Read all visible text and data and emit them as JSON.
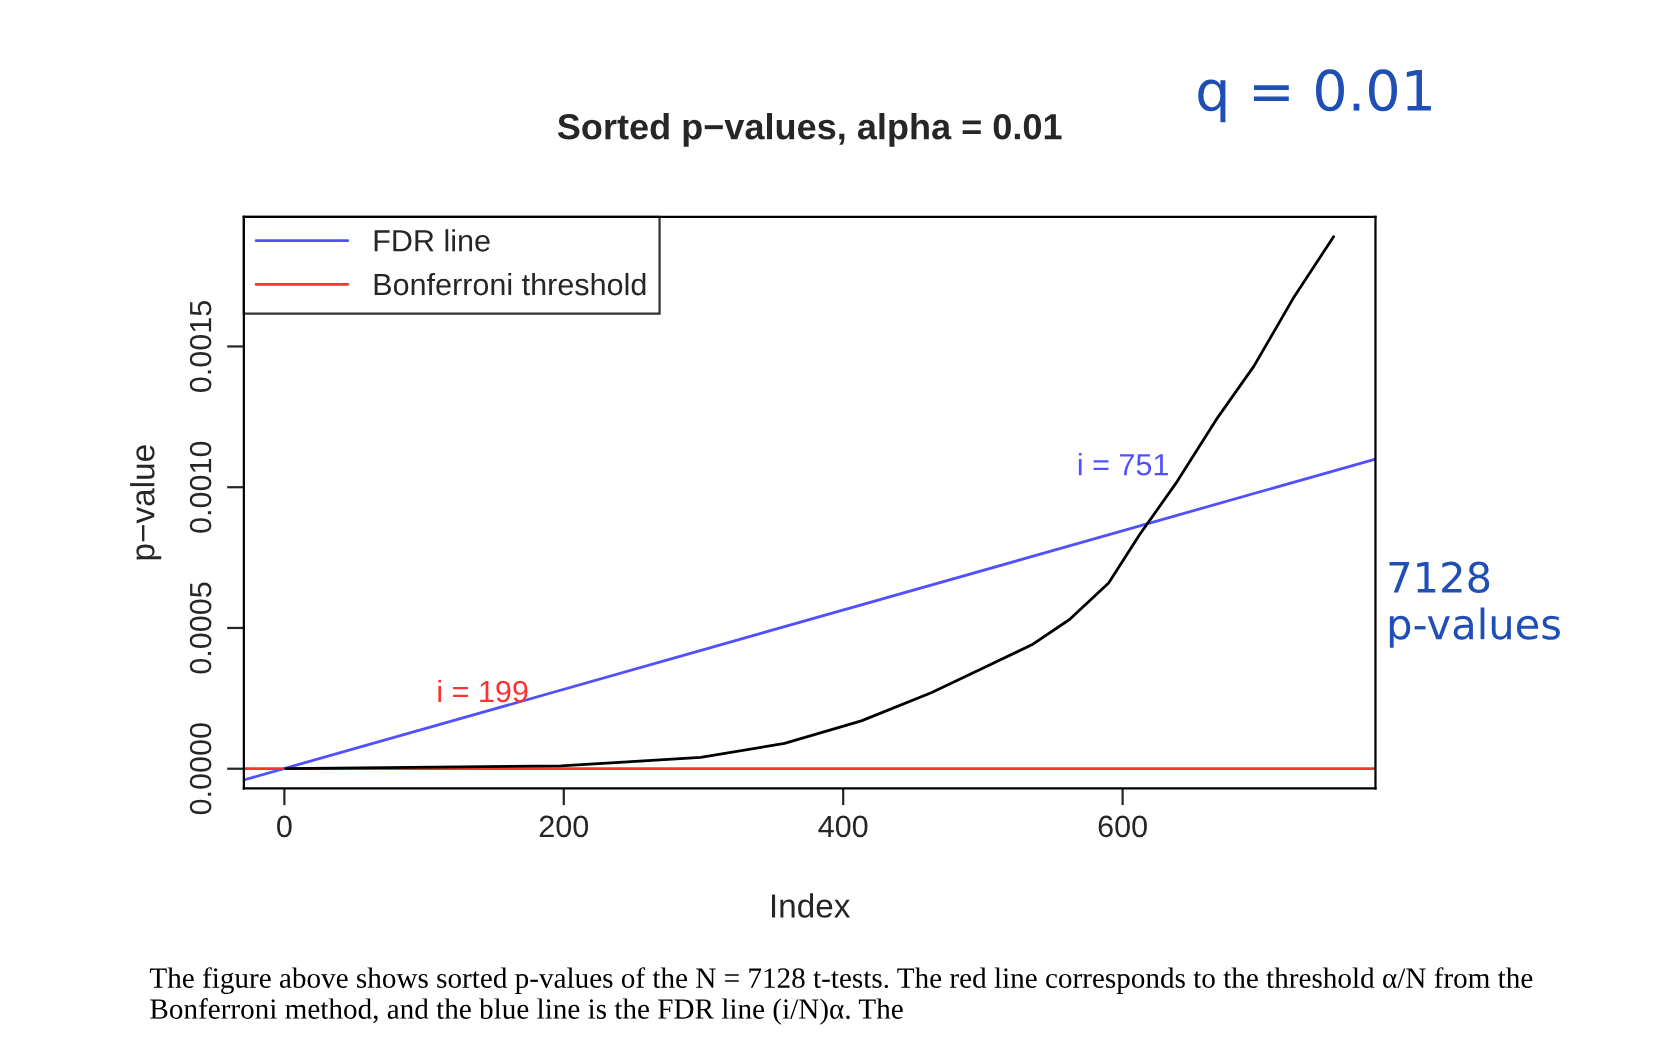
{
  "chart_data": {
    "type": "line",
    "title": "Sorted p−values, alpha = 0.01",
    "xlabel": "Index",
    "ylabel": "p−value",
    "xlim": [
      -29,
      781
    ],
    "ylim": [
      -7e-05,
      0.00196
    ],
    "xticks": [
      0,
      200,
      400,
      600
    ],
    "yticks": [
      {
        "value": 0,
        "label": "0.0000"
      },
      {
        "value": 0.0005,
        "label": "0.0005"
      },
      {
        "value": 0.001,
        "label": "0.0010"
      },
      {
        "value": 0.0015,
        "label": "0.0015"
      }
    ],
    "grid": false,
    "legend": "top left",
    "marker": "none",
    "line_style": "solid",
    "series": [
      {
        "name": "FDR line",
        "color": "#5050ff",
        "x": [
          -29,
          781
        ],
        "values": [
          -4e-05,
          0.0011
        ]
      },
      {
        "name": "Bonferroni threshold",
        "color": "#ff3030",
        "x": [
          -29,
          781
        ],
        "values": [
          0,
          0
        ]
      },
      {
        "color": "#000000",
        "x": [
          1,
          198,
          298,
          358,
          413,
          463,
          501,
          535,
          562,
          590,
          612,
          639,
          667,
          694,
          722,
          751
        ],
        "values": [
          0,
          1e-05,
          4e-05,
          9e-05,
          0.00017,
          0.00027,
          0.00036,
          0.00044,
          0.00053,
          0.00066,
          0.00083,
          0.00102,
          0.00124,
          0.00143,
          0.00167,
          0.00189
        ]
      }
    ],
    "annotations": [
      "i = 751",
      "i = 199",
      "q = 0.01",
      "7128 p-values",
      "The figure above shows sorted p-values of the N = 7128 t-tests. The red line corresponds to the threshold α/N from the Bonferroni method, and the blue line is the FDR line (i/N)α. The"
    ]
  }
}
